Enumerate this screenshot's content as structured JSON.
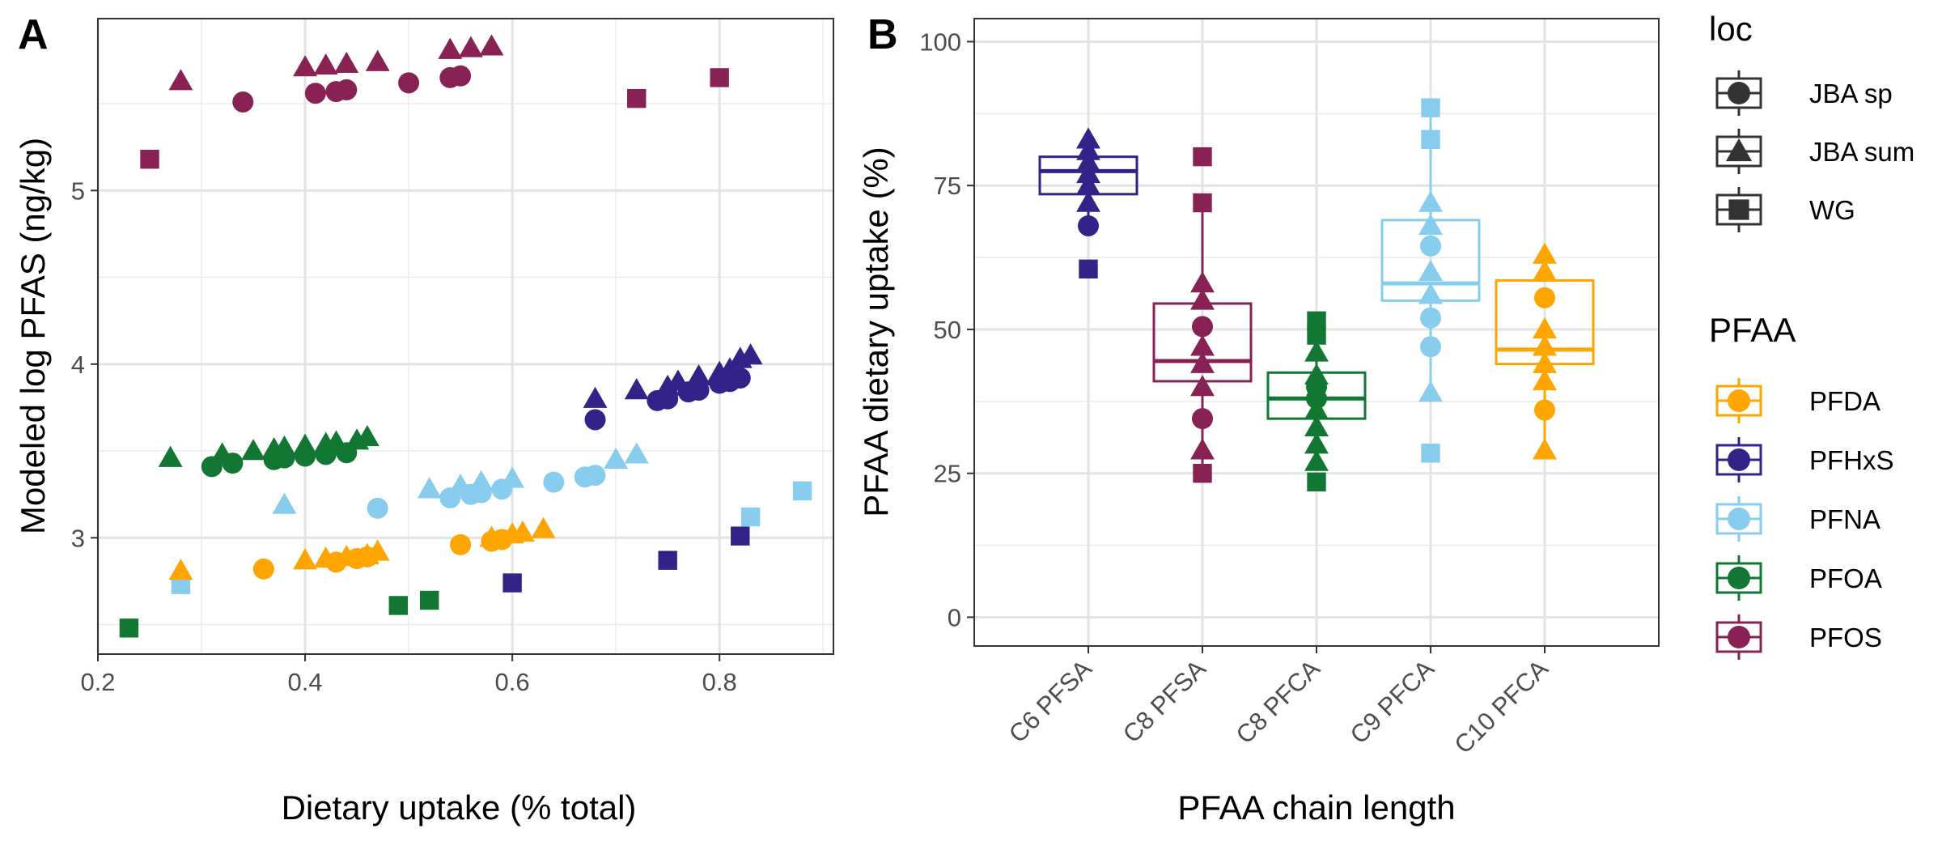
{
  "panel_a": {
    "label": "A"
  },
  "panel_b": {
    "label": "B"
  },
  "legend": {
    "loc_title": "loc",
    "loc_items": [
      {
        "label": "JBA sp",
        "shape": "circle"
      },
      {
        "label": "JBA sum",
        "shape": "triangle"
      },
      {
        "label": "WG",
        "shape": "square"
      }
    ],
    "pfaa_title": "PFAA",
    "pfaa_items": [
      {
        "label": "PFDA",
        "color": "#FFA500"
      },
      {
        "label": "PFHxS",
        "color": "#332288"
      },
      {
        "label": "PFNA",
        "color": "#88CCEE"
      },
      {
        "label": "PFOA",
        "color": "#117733"
      },
      {
        "label": "PFOS",
        "color": "#882255"
      }
    ]
  },
  "chart_data": [
    {
      "type": "scatter",
      "panel": "A",
      "xlabel": "Dietary uptake (% total)",
      "ylabel": "Modeled log PFAS (ng/kg)",
      "xlim": [
        0.2,
        0.91
      ],
      "ylim": [
        2.33,
        5.99
      ],
      "x_ticks": [
        "0.2",
        "0.4",
        "0.6",
        "0.8"
      ],
      "y_ticks": [
        "3",
        "4",
        "5"
      ],
      "grid": true,
      "series": [
        {
          "name": "PFOS",
          "color": "#882255",
          "points": [
            {
              "x": 0.28,
              "y": 5.63,
              "shape": "triangle"
            },
            {
              "x": 0.4,
              "y": 5.71,
              "shape": "triangle"
            },
            {
              "x": 0.42,
              "y": 5.72,
              "shape": "triangle"
            },
            {
              "x": 0.44,
              "y": 5.73,
              "shape": "triangle"
            },
            {
              "x": 0.47,
              "y": 5.74,
              "shape": "triangle"
            },
            {
              "x": 0.54,
              "y": 5.81,
              "shape": "triangle"
            },
            {
              "x": 0.56,
              "y": 5.82,
              "shape": "triangle"
            },
            {
              "x": 0.58,
              "y": 5.83,
              "shape": "triangle"
            },
            {
              "x": 0.34,
              "y": 5.51,
              "shape": "circle"
            },
            {
              "x": 0.41,
              "y": 5.56,
              "shape": "circle"
            },
            {
              "x": 0.43,
              "y": 5.57,
              "shape": "circle"
            },
            {
              "x": 0.44,
              "y": 5.58,
              "shape": "circle"
            },
            {
              "x": 0.5,
              "y": 5.62,
              "shape": "circle"
            },
            {
              "x": 0.54,
              "y": 5.65,
              "shape": "circle"
            },
            {
              "x": 0.55,
              "y": 5.66,
              "shape": "circle"
            },
            {
              "x": 0.25,
              "y": 5.18,
              "shape": "square"
            },
            {
              "x": 0.72,
              "y": 5.53,
              "shape": "square"
            },
            {
              "x": 0.8,
              "y": 5.65,
              "shape": "square"
            }
          ]
        },
        {
          "name": "PFHxS",
          "color": "#332288",
          "points": [
            {
              "x": 0.68,
              "y": 3.8,
              "shape": "triangle"
            },
            {
              "x": 0.72,
              "y": 3.85,
              "shape": "triangle"
            },
            {
              "x": 0.75,
              "y": 3.87,
              "shape": "triangle"
            },
            {
              "x": 0.76,
              "y": 3.9,
              "shape": "triangle"
            },
            {
              "x": 0.78,
              "y": 3.93,
              "shape": "triangle"
            },
            {
              "x": 0.8,
              "y": 3.95,
              "shape": "triangle"
            },
            {
              "x": 0.81,
              "y": 3.97,
              "shape": "triangle"
            },
            {
              "x": 0.82,
              "y": 4.03,
              "shape": "triangle"
            },
            {
              "x": 0.83,
              "y": 4.05,
              "shape": "triangle"
            },
            {
              "x": 0.68,
              "y": 3.68,
              "shape": "circle"
            },
            {
              "x": 0.74,
              "y": 3.79,
              "shape": "circle"
            },
            {
              "x": 0.75,
              "y": 3.8,
              "shape": "circle"
            },
            {
              "x": 0.77,
              "y": 3.84,
              "shape": "circle"
            },
            {
              "x": 0.78,
              "y": 3.85,
              "shape": "circle"
            },
            {
              "x": 0.8,
              "y": 3.89,
              "shape": "circle"
            },
            {
              "x": 0.81,
              "y": 3.9,
              "shape": "circle"
            },
            {
              "x": 0.82,
              "y": 3.92,
              "shape": "circle"
            },
            {
              "x": 0.6,
              "y": 2.74,
              "shape": "square"
            },
            {
              "x": 0.75,
              "y": 2.87,
              "shape": "square"
            },
            {
              "x": 0.82,
              "y": 3.01,
              "shape": "square"
            }
          ]
        },
        {
          "name": "PFOA",
          "color": "#117733",
          "points": [
            {
              "x": 0.27,
              "y": 3.46,
              "shape": "triangle"
            },
            {
              "x": 0.32,
              "y": 3.48,
              "shape": "triangle"
            },
            {
              "x": 0.35,
              "y": 3.5,
              "shape": "triangle"
            },
            {
              "x": 0.37,
              "y": 3.51,
              "shape": "triangle"
            },
            {
              "x": 0.38,
              "y": 3.52,
              "shape": "triangle"
            },
            {
              "x": 0.4,
              "y": 3.53,
              "shape": "triangle"
            },
            {
              "x": 0.42,
              "y": 3.54,
              "shape": "triangle"
            },
            {
              "x": 0.43,
              "y": 3.55,
              "shape": "triangle"
            },
            {
              "x": 0.45,
              "y": 3.56,
              "shape": "triangle"
            },
            {
              "x": 0.46,
              "y": 3.58,
              "shape": "triangle"
            },
            {
              "x": 0.31,
              "y": 3.41,
              "shape": "circle"
            },
            {
              "x": 0.33,
              "y": 3.43,
              "shape": "circle"
            },
            {
              "x": 0.37,
              "y": 3.45,
              "shape": "circle"
            },
            {
              "x": 0.38,
              "y": 3.46,
              "shape": "circle"
            },
            {
              "x": 0.4,
              "y": 3.47,
              "shape": "circle"
            },
            {
              "x": 0.42,
              "y": 3.48,
              "shape": "circle"
            },
            {
              "x": 0.44,
              "y": 3.49,
              "shape": "circle"
            },
            {
              "x": 0.23,
              "y": 2.48,
              "shape": "square"
            },
            {
              "x": 0.49,
              "y": 2.61,
              "shape": "square"
            },
            {
              "x": 0.52,
              "y": 2.64,
              "shape": "square"
            }
          ]
        },
        {
          "name": "PFNA",
          "color": "#88CCEE",
          "points": [
            {
              "x": 0.38,
              "y": 3.19,
              "shape": "triangle"
            },
            {
              "x": 0.52,
              "y": 3.28,
              "shape": "triangle"
            },
            {
              "x": 0.55,
              "y": 3.3,
              "shape": "triangle"
            },
            {
              "x": 0.57,
              "y": 3.32,
              "shape": "triangle"
            },
            {
              "x": 0.6,
              "y": 3.34,
              "shape": "triangle"
            },
            {
              "x": 0.7,
              "y": 3.45,
              "shape": "triangle"
            },
            {
              "x": 0.72,
              "y": 3.48,
              "shape": "triangle"
            },
            {
              "x": 0.47,
              "y": 3.17,
              "shape": "circle"
            },
            {
              "x": 0.54,
              "y": 3.23,
              "shape": "circle"
            },
            {
              "x": 0.56,
              "y": 3.25,
              "shape": "circle"
            },
            {
              "x": 0.57,
              "y": 3.26,
              "shape": "circle"
            },
            {
              "x": 0.59,
              "y": 3.28,
              "shape": "circle"
            },
            {
              "x": 0.64,
              "y": 3.32,
              "shape": "circle"
            },
            {
              "x": 0.67,
              "y": 3.35,
              "shape": "circle"
            },
            {
              "x": 0.68,
              "y": 3.36,
              "shape": "circle"
            },
            {
              "x": 0.28,
              "y": 2.73,
              "shape": "square"
            },
            {
              "x": 0.83,
              "y": 3.12,
              "shape": "square"
            },
            {
              "x": 0.88,
              "y": 3.27,
              "shape": "square"
            }
          ]
        },
        {
          "name": "PFDA",
          "color": "#FFA500",
          "points": [
            {
              "x": 0.28,
              "y": 2.81,
              "shape": "triangle"
            },
            {
              "x": 0.4,
              "y": 2.87,
              "shape": "triangle"
            },
            {
              "x": 0.42,
              "y": 2.88,
              "shape": "triangle"
            },
            {
              "x": 0.44,
              "y": 2.89,
              "shape": "triangle"
            },
            {
              "x": 0.46,
              "y": 2.9,
              "shape": "triangle"
            },
            {
              "x": 0.47,
              "y": 2.92,
              "shape": "triangle"
            },
            {
              "x": 0.58,
              "y": 3.0,
              "shape": "triangle"
            },
            {
              "x": 0.6,
              "y": 3.02,
              "shape": "triangle"
            },
            {
              "x": 0.61,
              "y": 3.03,
              "shape": "triangle"
            },
            {
              "x": 0.63,
              "y": 3.05,
              "shape": "triangle"
            },
            {
              "x": 0.36,
              "y": 2.82,
              "shape": "circle"
            },
            {
              "x": 0.43,
              "y": 2.86,
              "shape": "circle"
            },
            {
              "x": 0.45,
              "y": 2.88,
              "shape": "circle"
            },
            {
              "x": 0.46,
              "y": 2.89,
              "shape": "circle"
            },
            {
              "x": 0.55,
              "y": 2.96,
              "shape": "circle"
            },
            {
              "x": 0.58,
              "y": 2.98,
              "shape": "circle"
            },
            {
              "x": 0.59,
              "y": 2.99,
              "shape": "circle"
            }
          ]
        }
      ]
    },
    {
      "type": "box",
      "panel": "B",
      "xlabel": "PFAA chain length",
      "ylabel": "PFAA dietary uptake (%)",
      "ylim": [
        -5,
        104
      ],
      "y_ticks": [
        0,
        25,
        50,
        75,
        100
      ],
      "categories": [
        "C6 PFSA",
        "C8 PFSA",
        "C8 PFCA",
        "C9 PFCA",
        "C10 PFCA"
      ],
      "grid": true,
      "boxes": [
        {
          "category": "C6 PFSA",
          "pfaa": "PFHxS",
          "color": "#332288",
          "min": 68,
          "q1": 73.5,
          "median": 77.5,
          "q3": 80,
          "max": 83,
          "points": [
            {
              "y": 60.5,
              "shape": "square"
            },
            {
              "y": 68,
              "shape": "circle"
            },
            {
              "y": 72,
              "shape": "triangle"
            },
            {
              "y": 75,
              "shape": "triangle"
            },
            {
              "y": 77,
              "shape": "triangle"
            },
            {
              "y": 79,
              "shape": "triangle"
            },
            {
              "y": 81,
              "shape": "triangle"
            },
            {
              "y": 83,
              "shape": "triangle"
            }
          ]
        },
        {
          "category": "C8 PFSA",
          "pfaa": "PFOS",
          "color": "#882255",
          "min": 25,
          "q1": 41,
          "median": 44.5,
          "q3": 54.5,
          "max": 72,
          "points": [
            {
              "y": 80,
              "shape": "square"
            },
            {
              "y": 72,
              "shape": "square"
            },
            {
              "y": 58,
              "shape": "triangle"
            },
            {
              "y": 55,
              "shape": "triangle"
            },
            {
              "y": 50.5,
              "shape": "circle"
            },
            {
              "y": 47,
              "shape": "triangle"
            },
            {
              "y": 44,
              "shape": "triangle"
            },
            {
              "y": 40,
              "shape": "triangle"
            },
            {
              "y": 34.5,
              "shape": "circle"
            },
            {
              "y": 29,
              "shape": "triangle"
            },
            {
              "y": 25,
              "shape": "square"
            }
          ]
        },
        {
          "category": "C8 PFCA",
          "pfaa": "PFOA",
          "color": "#117733",
          "min": 27,
          "q1": 34.5,
          "median": 38,
          "q3": 42.5,
          "max": 51.5,
          "points": [
            {
              "y": 51.5,
              "shape": "square"
            },
            {
              "y": 49,
              "shape": "square"
            },
            {
              "y": 46,
              "shape": "triangle"
            },
            {
              "y": 42,
              "shape": "triangle"
            },
            {
              "y": 40,
              "shape": "circle"
            },
            {
              "y": 38,
              "shape": "circle"
            },
            {
              "y": 36,
              "shape": "triangle"
            },
            {
              "y": 33,
              "shape": "triangle"
            },
            {
              "y": 30,
              "shape": "triangle"
            },
            {
              "y": 27,
              "shape": "triangle"
            },
            {
              "y": 23.5,
              "shape": "square"
            }
          ]
        },
        {
          "category": "C9 PFCA",
          "pfaa": "PFNA",
          "color": "#88CCEE",
          "min": 38,
          "q1": 55,
          "median": 58,
          "q3": 69,
          "max": 88.5,
          "points": [
            {
              "y": 88.5,
              "shape": "square"
            },
            {
              "y": 83,
              "shape": "square"
            },
            {
              "y": 72,
              "shape": "triangle"
            },
            {
              "y": 68,
              "shape": "triangle"
            },
            {
              "y": 64.5,
              "shape": "circle"
            },
            {
              "y": 60,
              "shape": "triangle"
            },
            {
              "y": 56,
              "shape": "triangle"
            },
            {
              "y": 52,
              "shape": "circle"
            },
            {
              "y": 47,
              "shape": "circle"
            },
            {
              "y": 39,
              "shape": "triangle"
            },
            {
              "y": 28.5,
              "shape": "square"
            }
          ]
        },
        {
          "category": "C10 PFCA",
          "pfaa": "PFDA",
          "color": "#FFA500",
          "min": 29,
          "q1": 44,
          "median": 46.5,
          "q3": 58.5,
          "max": 63,
          "points": [
            {
              "y": 63,
              "shape": "triangle"
            },
            {
              "y": 60,
              "shape": "triangle"
            },
            {
              "y": 55.5,
              "shape": "circle"
            },
            {
              "y": 50,
              "shape": "triangle"
            },
            {
              "y": 47,
              "shape": "triangle"
            },
            {
              "y": 44,
              "shape": "triangle"
            },
            {
              "y": 41,
              "shape": "triangle"
            },
            {
              "y": 36,
              "shape": "circle"
            },
            {
              "y": 29,
              "shape": "triangle"
            }
          ]
        }
      ]
    }
  ]
}
